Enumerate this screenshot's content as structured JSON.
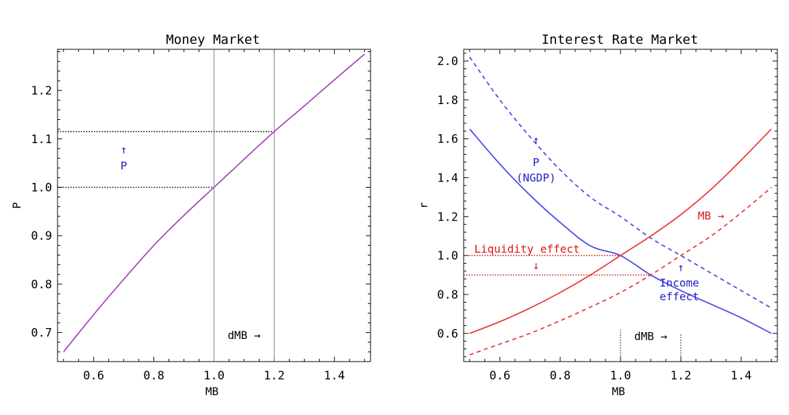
{
  "colors": {
    "purple": "#a24bb4",
    "blue": "#4a4ae8",
    "red": "#e83b3b",
    "annot_blue": "#2020c8",
    "annot_red": "#d81818",
    "gray": "#808080",
    "black": "#000000"
  },
  "chart_data": [
    {
      "type": "line",
      "title": "Money Market",
      "xlabel": "MB",
      "ylabel": "P",
      "xlim": [
        0.48,
        1.52
      ],
      "ylim": [
        0.64,
        1.285
      ],
      "xticks": [
        0.6,
        0.8,
        1.0,
        1.2,
        1.4
      ],
      "xtick_labels": [
        "0.6",
        "0.8",
        "1.0",
        "1.2",
        "1.4"
      ],
      "yticks": [
        0.7,
        0.8,
        0.9,
        1.0,
        1.1,
        1.2
      ],
      "ytick_labels": [
        "0.7",
        "0.8",
        "0.9",
        "1.0",
        "1.1",
        "1.2"
      ],
      "grid": false,
      "series": [
        {
          "style": "solid",
          "color_key": "purple",
          "x": [
            0.5,
            0.6,
            0.7,
            0.8,
            0.9,
            1.0,
            1.1,
            1.2,
            1.3,
            1.4,
            1.5
          ],
          "y": [
            0.66,
            0.737,
            0.81,
            0.88,
            0.942,
            1.0,
            1.058,
            1.115,
            1.168,
            1.222,
            1.275
          ]
        }
      ],
      "vlines": [
        1.0,
        1.2
      ],
      "hlines": [
        {
          "y": 1.0,
          "x_to": 1.0
        },
        {
          "y": 1.115,
          "x_to": 1.2
        }
      ],
      "annotations": [
        {
          "text": "↑",
          "x": 0.7,
          "y": 1.07,
          "color_key": "annot_blue"
        },
        {
          "text": "P",
          "x": 0.7,
          "y": 1.037,
          "color_key": "annot_blue"
        },
        {
          "text": "dMB →",
          "x": 1.1,
          "y": 0.687,
          "color_key": "black"
        }
      ]
    },
    {
      "type": "line",
      "title": "Interest Rate Market",
      "xlabel": "MB",
      "ylabel": "r",
      "xlim": [
        0.48,
        1.52
      ],
      "ylim": [
        0.455,
        2.06
      ],
      "xticks": [
        0.6,
        0.8,
        1.0,
        1.2,
        1.4
      ],
      "xtick_labels": [
        "0.6",
        "0.8",
        "1.0",
        "1.2",
        "1.4"
      ],
      "yticks": [
        0.6,
        0.8,
        1.0,
        1.2,
        1.4,
        1.6,
        1.8,
        2.0
      ],
      "ytick_labels": [
        "0.6",
        "0.8",
        "1.0",
        "1.2",
        "1.4",
        "1.6",
        "1.8",
        "2.0"
      ],
      "grid": false,
      "series": [
        {
          "style": "solid",
          "color_key": "blue",
          "x": [
            0.5,
            0.6,
            0.7,
            0.8,
            0.9,
            1.0,
            1.1,
            1.2,
            1.3,
            1.4,
            1.5
          ],
          "y": [
            1.65,
            1.47,
            1.31,
            1.17,
            1.05,
            1.0,
            0.9,
            0.82,
            0.75,
            0.68,
            0.6
          ]
        },
        {
          "style": "dashed",
          "color_key": "blue",
          "x": [
            0.5,
            0.6,
            0.7,
            0.8,
            0.9,
            1.0,
            1.1,
            1.2,
            1.3,
            1.4,
            1.5
          ],
          "y": [
            2.02,
            1.8,
            1.61,
            1.44,
            1.3,
            1.2,
            1.09,
            1.0,
            0.91,
            0.82,
            0.73
          ]
        },
        {
          "style": "solid",
          "color_key": "red",
          "x": [
            0.5,
            0.6,
            0.7,
            0.8,
            0.9,
            1.0,
            1.1,
            1.2,
            1.3,
            1.4,
            1.5
          ],
          "y": [
            0.6,
            0.66,
            0.73,
            0.81,
            0.9,
            1.0,
            1.1,
            1.21,
            1.34,
            1.49,
            1.65
          ]
        },
        {
          "style": "dashed",
          "color_key": "red",
          "x": [
            0.5,
            0.6,
            0.7,
            0.8,
            0.9,
            1.0,
            1.1,
            1.2,
            1.3,
            1.4,
            1.5
          ],
          "y": [
            0.49,
            0.545,
            0.6,
            0.665,
            0.735,
            0.81,
            0.9,
            1.0,
            1.1,
            1.22,
            1.35
          ]
        }
      ],
      "vlines": [
        {
          "x": 1.0,
          "y_from": 0.455,
          "y_to": 0.62
        },
        {
          "x": 1.2,
          "y_from": 0.455,
          "y_to": 0.6
        }
      ],
      "hlines": [
        {
          "y": 1.0,
          "x_to": 1.0,
          "color_key": "annot_red"
        },
        {
          "y": 0.9,
          "x_to": 1.1,
          "color_key": "annot_red"
        }
      ],
      "annotations": [
        {
          "text": "↑",
          "x": 0.72,
          "y": 1.575,
          "color_key": "annot_blue"
        },
        {
          "text": "P",
          "x": 0.72,
          "y": 1.46,
          "color_key": "annot_blue"
        },
        {
          "text": "(NGDP)",
          "x": 0.72,
          "y": 1.38,
          "color_key": "annot_blue"
        },
        {
          "text": "MB →",
          "x": 1.3,
          "y": 1.185,
          "color_key": "annot_red"
        },
        {
          "text": "Liquidity effect",
          "x": 0.69,
          "y": 1.015,
          "color_key": "annot_red"
        },
        {
          "text": "↓",
          "x": 0.72,
          "y": 0.93,
          "color_key": "annot_red"
        },
        {
          "text": "↑",
          "x": 1.2,
          "y": 0.92,
          "color_key": "annot_blue"
        },
        {
          "text": "Income",
          "x": 1.195,
          "y": 0.84,
          "color_key": "annot_blue"
        },
        {
          "text": "effect",
          "x": 1.195,
          "y": 0.77,
          "color_key": "annot_blue"
        },
        {
          "text": "dMB →",
          "x": 1.1,
          "y": 0.565,
          "color_key": "black"
        }
      ]
    }
  ]
}
